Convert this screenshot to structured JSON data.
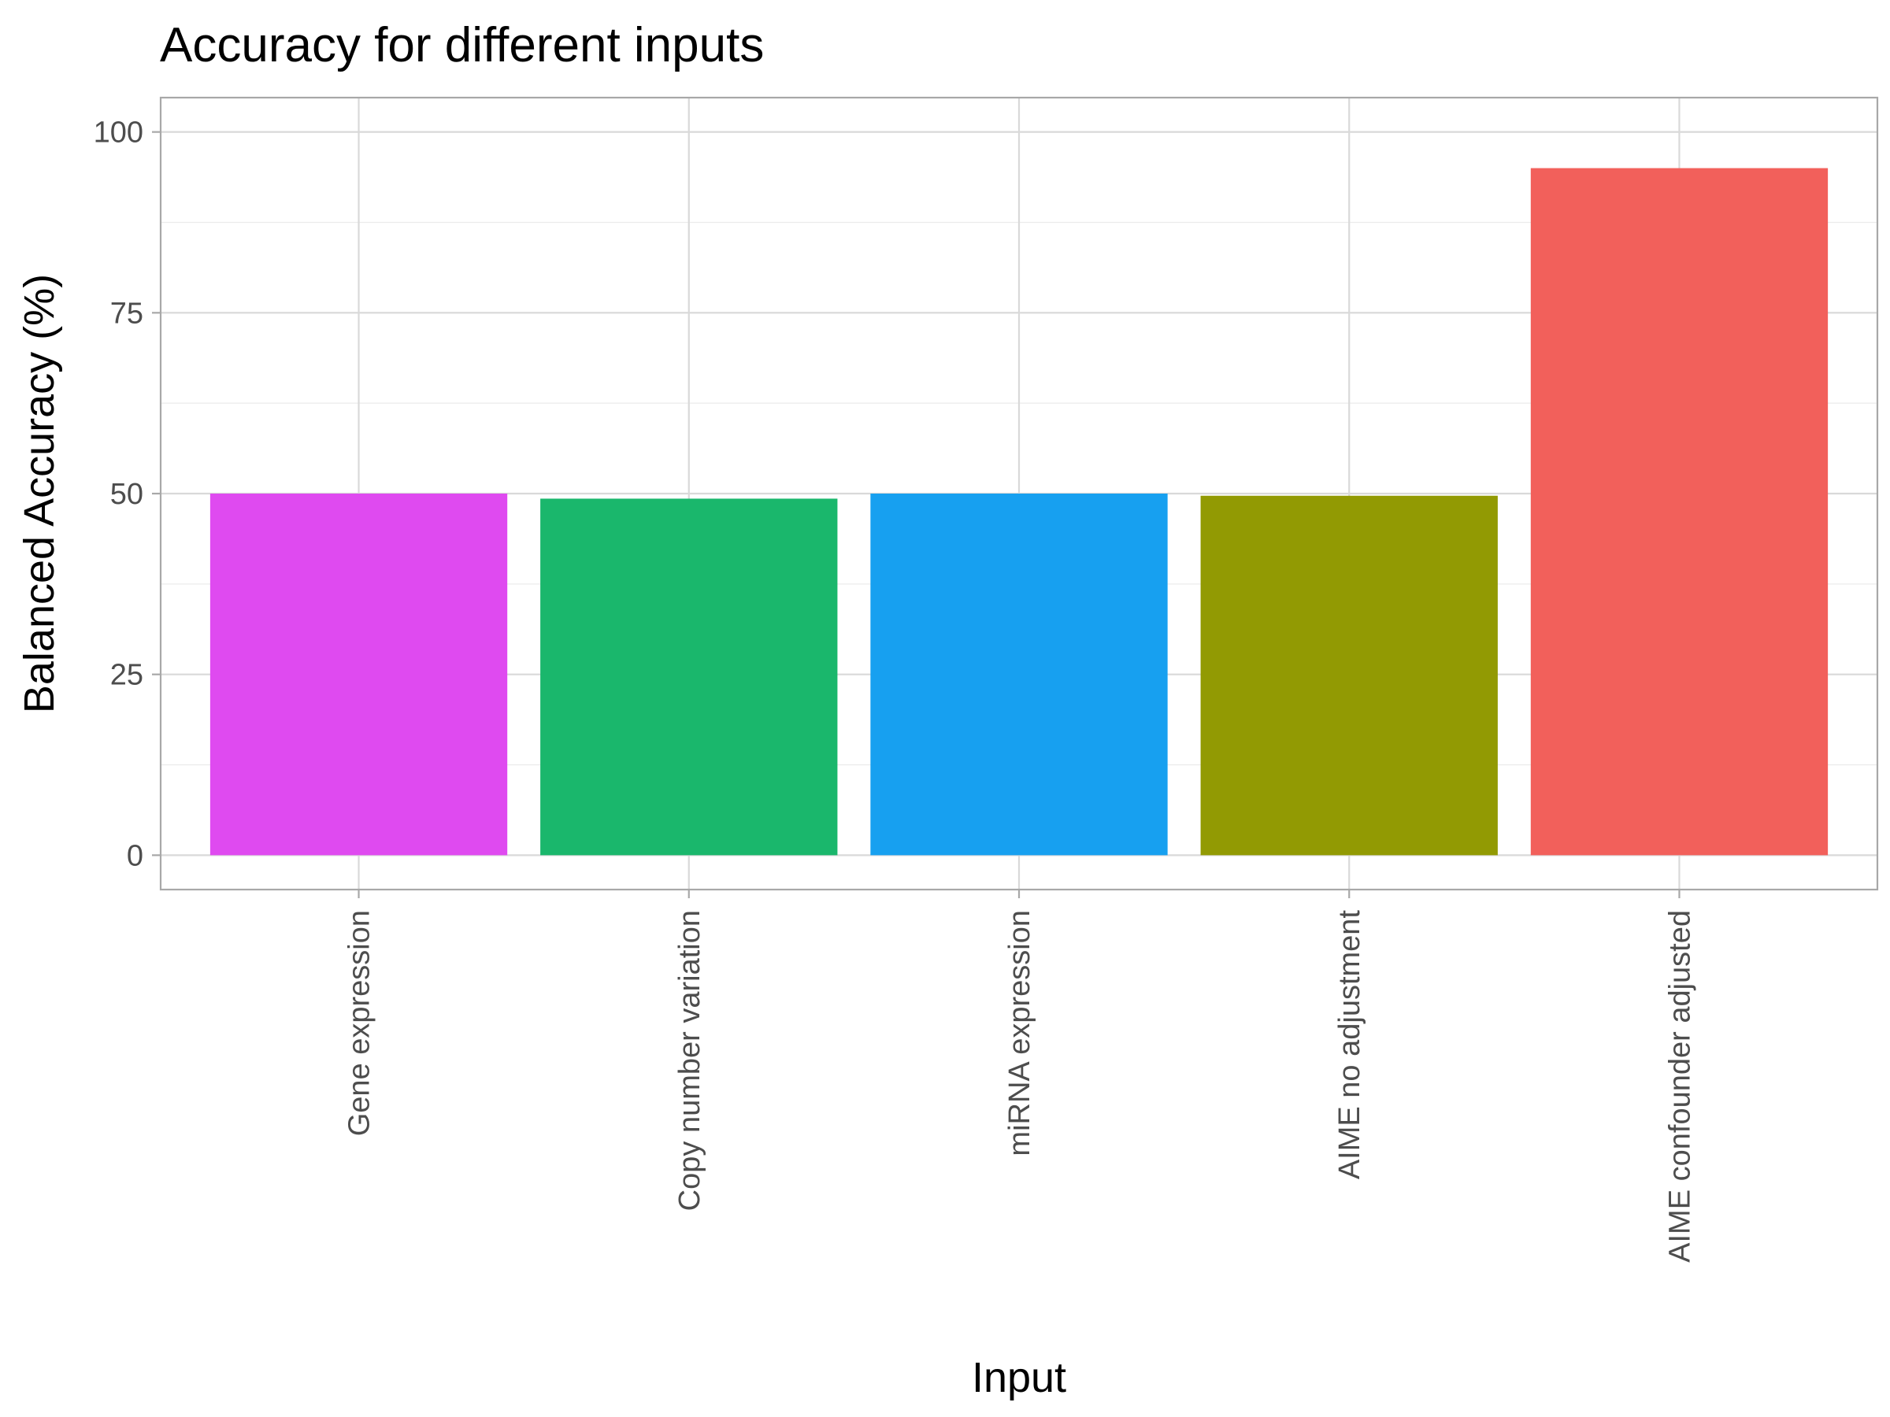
{
  "chart_data": {
    "type": "bar",
    "title": "Accuracy for different inputs",
    "xlabel": "Input",
    "ylabel": "Balanced Accuracy (%)",
    "categories": [
      "Gene expression",
      "Copy number variation",
      "miRNA expression",
      "AIME no adjustment",
      "AIME confounder adjusted"
    ],
    "values": [
      50,
      49.3,
      50,
      49.7,
      95
    ],
    "colors": [
      "#df4af0",
      "#1ab76c",
      "#17a0f0",
      "#929a03",
      "#f2605b"
    ],
    "ylim": [
      -4.75,
      104.75
    ],
    "yticks": [
      0,
      25,
      50,
      75,
      100
    ],
    "grid": true,
    "legend": "none"
  }
}
